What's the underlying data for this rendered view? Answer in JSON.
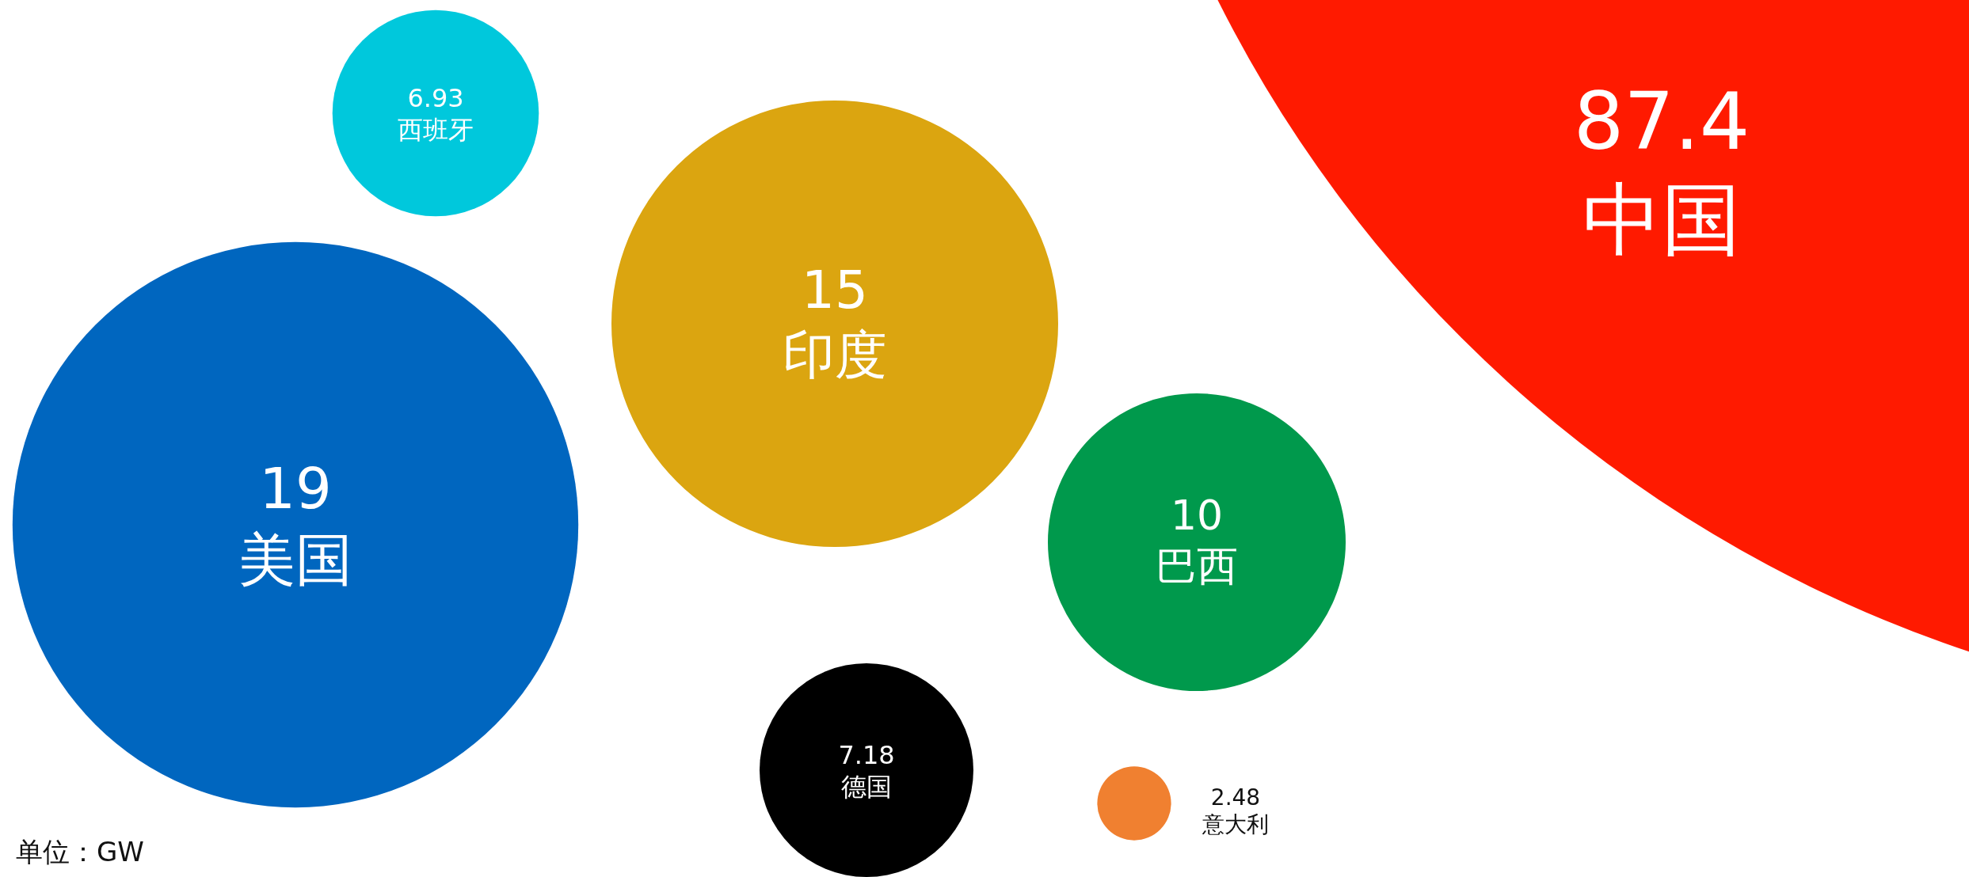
{
  "chart_data": {
    "type": "other",
    "categories": [
      "中国",
      "美国",
      "印度",
      "巴西",
      "德国",
      "西班牙",
      "意大利"
    ],
    "values": [
      87.4,
      19,
      15,
      10,
      7.18,
      6.93,
      2.48
    ],
    "colors": [
      "#ff1a00",
      "#0066bf",
      "#dba510",
      "#00994c",
      "#000000",
      "#00c8dc",
      "#f08030"
    ],
    "data_labels": true,
    "annotations": [
      "单位：GW"
    ]
  }
}
